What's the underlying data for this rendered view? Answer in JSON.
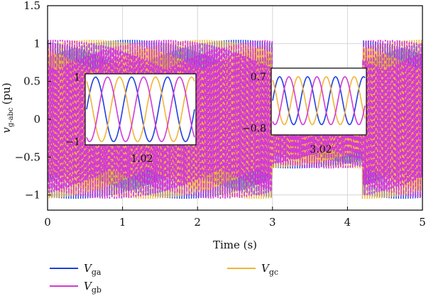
{
  "chart_data": {
    "type": "line",
    "title": "",
    "xlabel": "Time (s)",
    "ylabel_main": "v",
    "ylabel_sub": "g-abc",
    "ylabel_unit": "(pu)",
    "xlim": [
      0,
      5
    ],
    "ylim": [
      -1.2,
      1.5
    ],
    "xticks": [
      "0",
      "1",
      "2",
      "3",
      "4",
      "5"
    ],
    "yticks": [
      "−1",
      "−0.5",
      "0",
      "0.5",
      "1",
      "1.5"
    ],
    "grid": true,
    "legend_position": "bottom",
    "series": [
      {
        "name": "V",
        "name_sub": "ga",
        "color": "#1f3fe0",
        "amplitude_normal": 1.05,
        "amplitude_dip_3_to_4_2s": 0.65
      },
      {
        "name": "V",
        "name_sub": "gb",
        "color": "#d23ad6",
        "amplitude_normal": 1.05,
        "amplitude_dip_3_to_4_2s": 0.65
      },
      {
        "name": "V",
        "name_sub": "gc",
        "color": "#f0b43a",
        "amplitude_normal": 1.05,
        "amplitude_dip_3_to_4_2s": 0.65
      }
    ],
    "event_markers": [
      3.0,
      4.2
    ],
    "insets": [
      {
        "xtick": "1.02",
        "yticks": [
          "1",
          "−1"
        ],
        "ylim": [
          -1.1,
          1.1
        ],
        "amplitude": 1.0
      },
      {
        "xtick": "3.02",
        "yticks": [
          "0.7",
          "−0.8"
        ],
        "ylim": [
          -1.0,
          0.95
        ],
        "amplitude": 0.7
      }
    ]
  }
}
